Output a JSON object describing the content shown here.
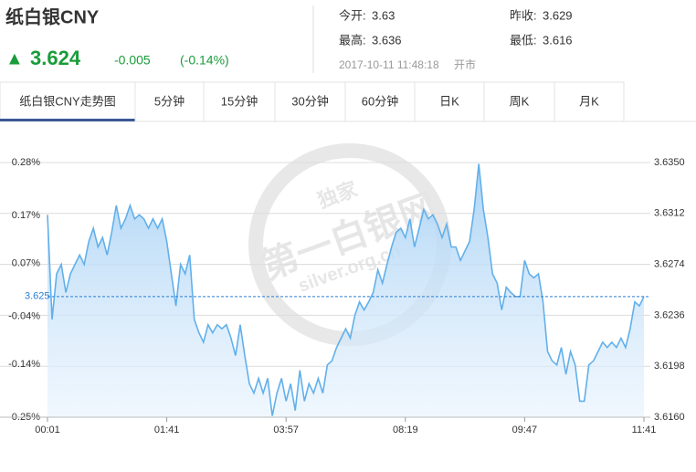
{
  "header": {
    "name": "纸白银CNY",
    "arrow": "▲",
    "price": 3.624,
    "change": -0.005,
    "change_pct": "(-0.14%)",
    "stats": [
      {
        "label": "今开:",
        "value": 3.63
      },
      {
        "label": "昨收:",
        "value": 3.629
      },
      {
        "label": "最高:",
        "value": 3.636
      },
      {
        "label": "最低:",
        "value": 3.616
      }
    ],
    "timestamp": "2017-10-11 11:48:18",
    "status": "开市"
  },
  "tabs": [
    "纸白银CNY走势图",
    "5分钟",
    "15分钟",
    "30分钟",
    "60分钟",
    "日K",
    "周K",
    "月K"
  ],
  "watermark": [
    "独家",
    "第一白银网",
    "silver.org.cn"
  ],
  "chart_data": {
    "type": "area",
    "color": "#62b0ea",
    "fill": "#bfdcf7",
    "categories": [
      "00:01",
      null,
      null,
      null,
      null,
      null,
      null,
      null,
      null,
      null,
      null,
      null,
      null,
      null,
      null,
      null,
      null,
      null,
      null,
      null,
      null,
      null,
      null,
      null,
      null,
      null,
      "01:41",
      null,
      null,
      null,
      null,
      null,
      null,
      null,
      null,
      null,
      null,
      null,
      null,
      null,
      null,
      null,
      null,
      null,
      null,
      null,
      null,
      null,
      null,
      null,
      null,
      null,
      "03:57",
      null,
      null,
      null,
      null,
      null,
      null,
      null,
      null,
      null,
      null,
      null,
      null,
      null,
      null,
      null,
      null,
      null,
      null,
      null,
      null,
      null,
      null,
      null,
      null,
      null,
      "08:19",
      null,
      null,
      null,
      null,
      null,
      null,
      null,
      null,
      null,
      null,
      null,
      null,
      null,
      null,
      null,
      null,
      null,
      null,
      null,
      null,
      null,
      null,
      null,
      null,
      null,
      "09:47",
      null,
      null,
      null,
      null,
      null,
      null,
      null,
      null,
      null,
      null,
      null,
      null,
      null,
      null,
      null,
      null,
      null,
      null,
      null,
      null,
      null,
      null,
      null,
      null,
      null,
      "11:41"
    ],
    "values": [
      3.6311,
      3.6233,
      3.6267,
      3.6274,
      3.6253,
      3.6267,
      3.6274,
      3.6281,
      3.6274,
      3.6291,
      3.6301,
      3.6287,
      3.6294,
      3.6281,
      3.6298,
      3.6318,
      3.6301,
      3.6308,
      3.6318,
      3.6308,
      3.6311,
      3.6308,
      3.6301,
      3.6308,
      3.6301,
      3.6308,
      3.6291,
      3.6267,
      3.6243,
      3.6274,
      3.6267,
      3.6281,
      3.6233,
      3.6223,
      3.6216,
      3.6229,
      3.6223,
      3.6229,
      3.6226,
      3.6229,
      3.6219,
      3.6206,
      3.6229,
      3.6206,
      3.6185,
      3.6178,
      3.6189,
      3.6178,
      3.6189,
      3.6161,
      3.6178,
      3.6189,
      3.6172,
      3.6185,
      3.6165,
      3.6195,
      3.6172,
      3.6185,
      3.6178,
      3.6189,
      3.6178,
      3.6199,
      3.6202,
      3.6212,
      3.6219,
      3.6226,
      3.6219,
      3.6236,
      3.6246,
      3.624,
      3.6246,
      3.6253,
      3.627,
      3.626,
      3.6274,
      3.6287,
      3.6298,
      3.6301,
      3.6294,
      3.6308,
      3.6287,
      3.6301,
      3.6315,
      3.6308,
      3.6311,
      3.6304,
      3.6294,
      3.6304,
      3.6287,
      3.6287,
      3.6277,
      3.6284,
      3.6291,
      3.6315,
      3.6349,
      3.6315,
      3.6294,
      3.6267,
      3.626,
      3.624,
      3.6257,
      3.6253,
      3.625,
      3.625,
      3.6277,
      3.6267,
      3.6264,
      3.6267,
      3.6246,
      3.6209,
      3.6202,
      3.6199,
      3.6212,
      3.6192,
      3.6209,
      3.6199,
      3.6172,
      3.6172,
      3.6199,
      3.6202,
      3.6209,
      3.6216,
      3.6212,
      3.6216,
      3.6212,
      3.6219,
      3.6212,
      3.6226,
      3.6246,
      3.6243,
      3.625
    ],
    "ylim": [
      3.616,
      3.635
    ],
    "yticks": [
      {
        "value": 3.635,
        "label": "3.6350"
      },
      {
        "value": 3.6312,
        "label": "3.6312"
      },
      {
        "value": 3.6274,
        "label": "3.6274"
      },
      {
        "value": 3.6236,
        "label": "3.6236"
      },
      {
        "value": 3.6198,
        "label": "3.6198"
      },
      {
        "value": 3.616,
        "label": "3.6160"
      }
    ],
    "y2lim": [
      -0.25,
      0.28
    ],
    "y2ticks": [
      {
        "value": 0.28,
        "label": "0.28%"
      },
      {
        "value": 0.17,
        "label": "0.17%"
      },
      {
        "value": 0.07,
        "label": "0.07%"
      },
      {
        "value": -0.04,
        "label": "-0.04%"
      },
      {
        "value": -0.14,
        "label": "-0.14%"
      },
      {
        "value": -0.25,
        "label": "-0.25%"
      }
    ],
    "ref_line": 3.625,
    "grid": true
  }
}
